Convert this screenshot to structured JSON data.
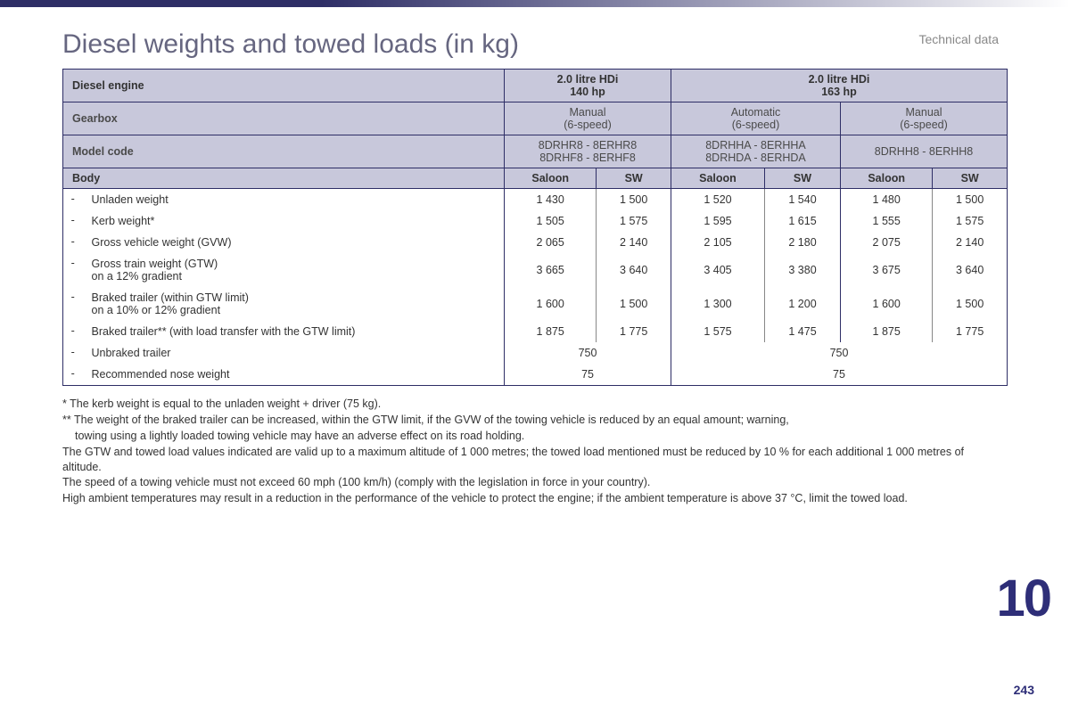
{
  "section_label": "Technical data",
  "title": "Diesel weights and towed loads (in kg)",
  "chapter_number": "10",
  "page_number": "243",
  "table": {
    "row_header_labels": {
      "engine": "Diesel engine",
      "gearbox": "Gearbox",
      "model_code": "Model code",
      "body": "Body"
    },
    "engines": [
      {
        "name": "2.0 litre HDi",
        "power": "140 hp"
      },
      {
        "name": "2.0 litre HDi",
        "power": "163 hp"
      }
    ],
    "gearboxes": [
      {
        "name": "Manual",
        "speeds": "(6-speed)"
      },
      {
        "name": "Automatic",
        "speeds": "(6-speed)"
      },
      {
        "name": "Manual",
        "speeds": "(6-speed)"
      }
    ],
    "model_codes": [
      {
        "line1": "8DRHR8 - 8ERHR8",
        "line2": "8DRHF8 - 8ERHF8"
      },
      {
        "line1": "8DRHHA - 8ERHHA",
        "line2": "8DRHDA - 8ERHDA"
      },
      {
        "line1": "8DRHH8 - 8ERHH8",
        "line2": ""
      }
    ],
    "body_labels": [
      "Saloon",
      "SW",
      "Saloon",
      "SW",
      "Saloon",
      "SW"
    ],
    "rows": [
      {
        "label": "Unladen weight",
        "values": [
          "1 430",
          "1 500",
          "1 520",
          "1 540",
          "1 480",
          "1 500"
        ]
      },
      {
        "label": "Kerb weight*",
        "values": [
          "1 505",
          "1 575",
          "1 595",
          "1 615",
          "1 555",
          "1 575"
        ]
      },
      {
        "label": "Gross vehicle weight (GVW)",
        "values": [
          "2 065",
          "2 140",
          "2 105",
          "2 180",
          "2 075",
          "2 140"
        ]
      },
      {
        "label": "Gross train weight (GTW)\non a 12% gradient",
        "values": [
          "3 665",
          "3 640",
          "3 405",
          "3 380",
          "3 675",
          "3 640"
        ]
      },
      {
        "label": "Braked trailer (within GTW limit)\non a 10% or 12% gradient",
        "values": [
          "1 600",
          "1 500",
          "1 300",
          "1 200",
          "1 600",
          "1 500"
        ]
      },
      {
        "label": "Braked trailer** (with load transfer with the GTW limit)",
        "values": [
          "1 875",
          "1 775",
          "1 575",
          "1 475",
          "1 875",
          "1 775"
        ]
      }
    ],
    "merged_rows": [
      {
        "label": "Unbraked trailer",
        "values": [
          "750",
          "750"
        ]
      },
      {
        "label": "Recommended nose weight",
        "values": [
          "75",
          "75"
        ]
      }
    ]
  },
  "footnotes": {
    "n1": "* The kerb weight is equal to the unladen weight + driver (75 kg).",
    "n2a": "** The weight of the braked trailer can be increased, within the GTW limit, if the GVW of the towing vehicle is reduced by an equal amount; warning,",
    "n2b": "towing using a lightly loaded towing vehicle may have an adverse effect on its road holding.",
    "n3": "The GTW and towed load values indicated are valid up to a maximum altitude of 1 000 metres; the towed load mentioned must be reduced by 10 % for each additional 1 000 metres of altitude.",
    "n4": "The speed of a towing vehicle must not exceed 60 mph (100 km/h) (comply with the legislation in force in your country).",
    "n5": "High ambient temperatures may result in a reduction in the performance of the vehicle to protect the engine; if the ambient temperature is above 37 °C, limit the towed load."
  }
}
